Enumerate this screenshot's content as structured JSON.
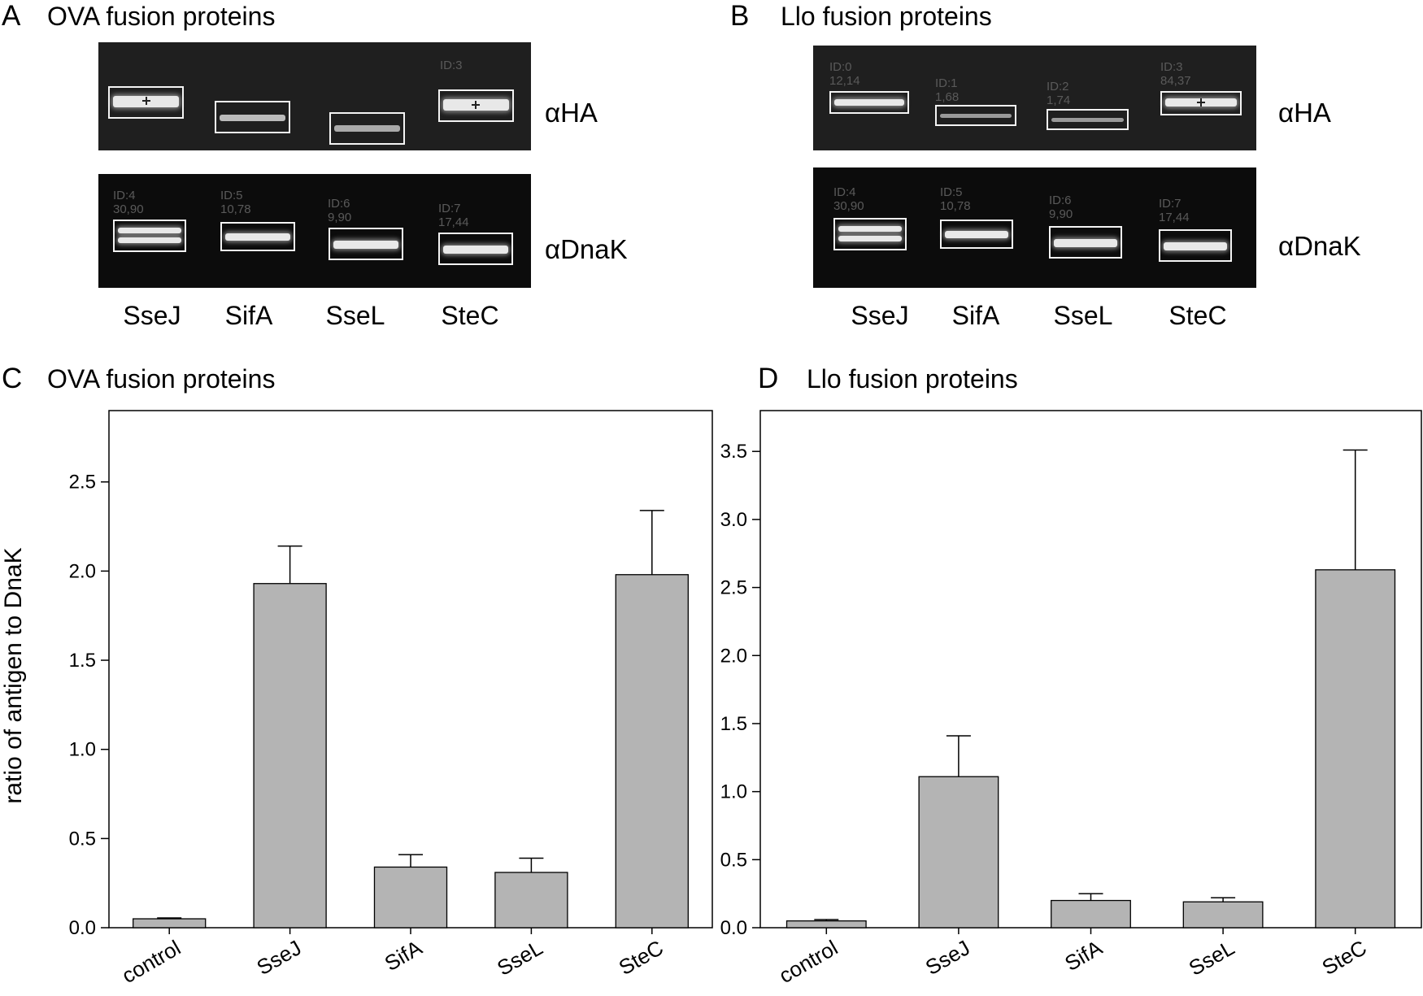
{
  "panels": {
    "A": {
      "letter": "A",
      "title": "OVA fusion proteins"
    },
    "B": {
      "letter": "B",
      "title": "Llo fusion proteins"
    },
    "C": {
      "letter": "C",
      "title": "OVA fusion proteins"
    },
    "D": {
      "letter": "D",
      "title": "Llo fusion proteins"
    }
  },
  "blots": {
    "A": {
      "ha_label": "αHA",
      "dnak_label": "αDnaK",
      "lanes": [
        "SseJ",
        "SifA",
        "SseL",
        "SteC"
      ],
      "ha_ids": [
        "",
        "",
        "",
        "ID:3"
      ],
      "dnak_ids": [
        "ID:4\n30,90",
        "ID:5\n10,78",
        "ID:6\n9,90",
        "ID:7\n17,44"
      ]
    },
    "B": {
      "ha_label": "αHA",
      "dnak_label": "αDnaK",
      "lanes": [
        "SseJ",
        "SifA",
        "SseL",
        "SteC"
      ],
      "ha_ids": [
        "ID:0\n12,14",
        "ID:1\n1,68",
        "ID:2\n1,74",
        "ID:3\n84,37"
      ],
      "dnak_ids": [
        "ID:4\n30,90",
        "ID:5\n10,78",
        "ID:6\n9,90",
        "ID:7\n17,44"
      ]
    }
  },
  "chart_data": [
    {
      "type": "bar",
      "panel": "C",
      "ylabel": "ratio of antigen to DnaK",
      "categories": [
        "control",
        "SseJ",
        "SifA",
        "SseL",
        "SteC"
      ],
      "values": [
        0.05,
        1.93,
        0.34,
        0.31,
        1.98
      ],
      "errors": [
        0.005,
        0.21,
        0.07,
        0.08,
        0.36
      ],
      "ylim": [
        0,
        2.9
      ],
      "yticks": [
        0.0,
        0.5,
        1.0,
        1.5,
        2.0,
        2.5
      ],
      "ytick_labels": [
        "0.0",
        "0.5",
        "1.0",
        "1.5",
        "2.0",
        "2.5"
      ],
      "bar_color": "#b4b4b4",
      "grid": false
    },
    {
      "type": "bar",
      "panel": "D",
      "ylabel": "",
      "categories": [
        "control",
        "SseJ",
        "SifA",
        "SseL",
        "SteC"
      ],
      "values": [
        0.05,
        1.11,
        0.2,
        0.19,
        2.63
      ],
      "errors": [
        0.01,
        0.3,
        0.05,
        0.03,
        0.88
      ],
      "ylim": [
        0,
        3.8
      ],
      "yticks": [
        0.0,
        0.5,
        1.0,
        1.5,
        2.0,
        2.5,
        3.0,
        3.5
      ],
      "ytick_labels": [
        "0.0",
        "0.5",
        "1.0",
        "1.5",
        "2.0",
        "2.5",
        "3.0",
        "3.5"
      ],
      "bar_color": "#b4b4b4",
      "grid": false
    }
  ]
}
